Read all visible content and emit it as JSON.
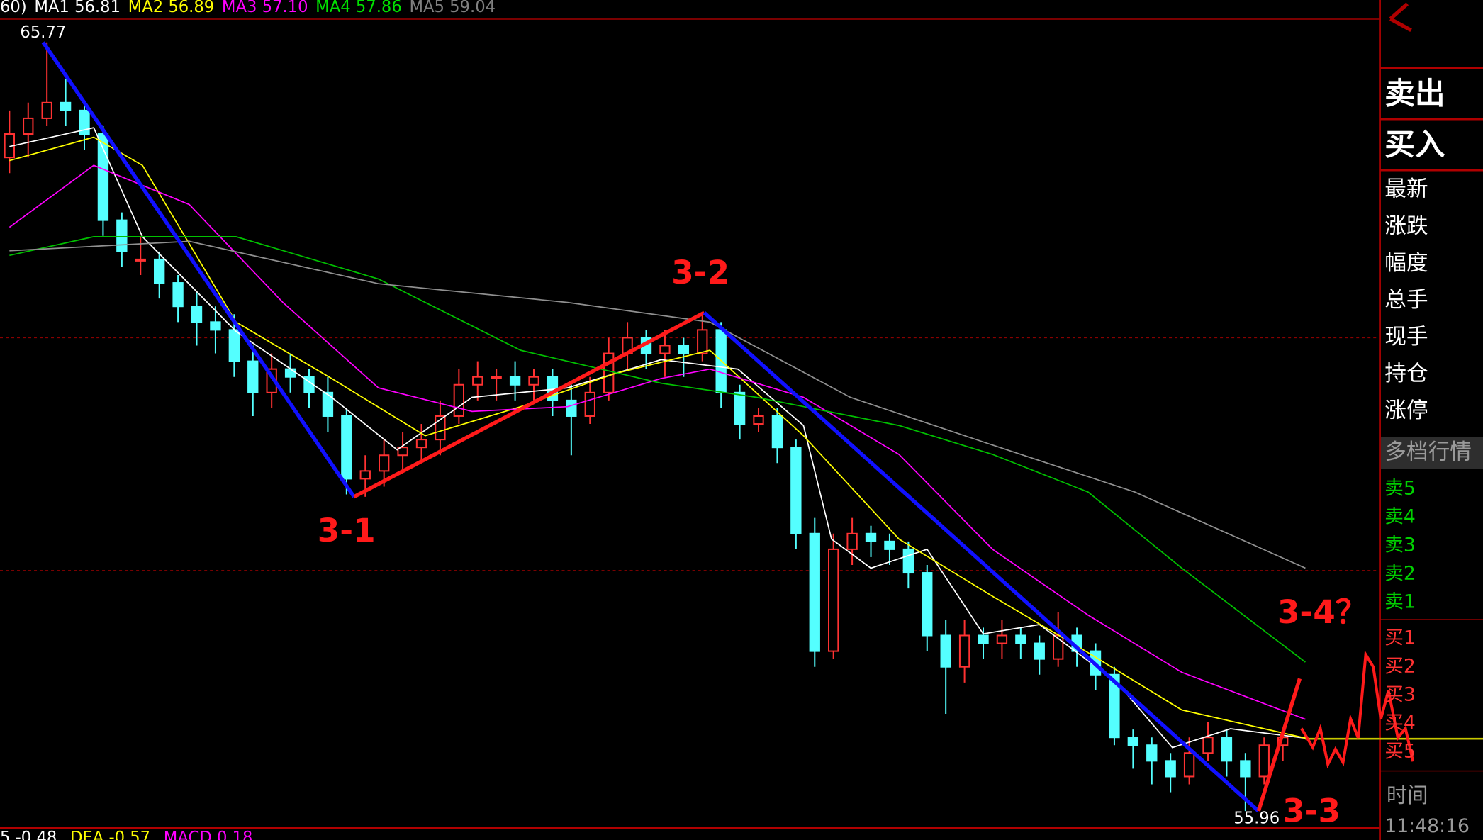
{
  "header": {
    "items": [
      {
        "text": "60)",
        "color": "#ffffff"
      },
      {
        "text": "MA1 56.81",
        "color": "#ffffff"
      },
      {
        "text": "MA2 56.89",
        "color": "#ffff00"
      },
      {
        "text": "MA3 57.10",
        "color": "#ff00ff"
      },
      {
        "text": "MA4 57.86",
        "color": "#00e000"
      },
      {
        "text": "MA5 59.04",
        "color": "#808080"
      }
    ]
  },
  "footer": {
    "items": [
      {
        "text": "5 -0.48",
        "color": "#ffffff"
      },
      {
        "text": "DEA -0.57",
        "color": "#ffff00"
      },
      {
        "text": "MACD 0.18",
        "color": "#ff00ff"
      }
    ]
  },
  "panel": {
    "sell": "卖出",
    "buy": "买入",
    "fields": [
      "最新",
      "涨跌",
      "幅度",
      "总手",
      "现手",
      "持仓",
      "涨停"
    ],
    "depth_title": "多档行情",
    "asks": [
      "卖5",
      "卖4",
      "卖3",
      "卖2",
      "卖1"
    ],
    "bids": [
      "买1",
      "买2",
      "买3",
      "买4",
      "买5"
    ],
    "time_label": "时间",
    "time": "11:48:16"
  },
  "chart_data": {
    "type": "candlestick",
    "ylim": [
      55.59,
      66.31
    ],
    "up_color": "#ff3232",
    "down_color": "#54ffff",
    "grid_levels": [
      62.0,
      59.03
    ],
    "high": 65.77,
    "low": 55.96,
    "candles": [
      [
        64.3,
        64.9,
        64.1,
        64.6
      ],
      [
        64.6,
        65.0,
        64.3,
        64.8
      ],
      [
        64.8,
        65.77,
        64.7,
        65.0
      ],
      [
        65.0,
        65.3,
        64.7,
        64.9
      ],
      [
        64.9,
        65.0,
        64.4,
        64.6
      ],
      [
        64.6,
        64.7,
        63.3,
        63.5
      ],
      [
        63.5,
        63.6,
        62.9,
        63.1
      ],
      [
        63.0,
        63.3,
        62.8,
        63.0
      ],
      [
        63.0,
        63.1,
        62.5,
        62.7
      ],
      [
        62.7,
        62.8,
        62.2,
        62.4
      ],
      [
        62.4,
        62.6,
        61.9,
        62.2
      ],
      [
        62.2,
        62.4,
        61.8,
        62.1
      ],
      [
        62.1,
        62.3,
        61.5,
        61.7
      ],
      [
        61.7,
        61.9,
        61.0,
        61.3
      ],
      [
        61.3,
        61.8,
        61.1,
        61.6
      ],
      [
        61.6,
        61.8,
        61.3,
        61.5
      ],
      [
        61.5,
        61.6,
        61.1,
        61.3
      ],
      [
        61.3,
        61.5,
        60.8,
        61.0
      ],
      [
        61.0,
        61.1,
        60.0,
        60.2
      ],
      [
        60.2,
        60.5,
        59.97,
        60.3
      ],
      [
        60.3,
        60.7,
        60.1,
        60.5
      ],
      [
        60.5,
        60.8,
        60.3,
        60.6
      ],
      [
        60.6,
        60.9,
        60.4,
        60.7
      ],
      [
        60.7,
        61.2,
        60.5,
        61.0
      ],
      [
        61.0,
        61.6,
        60.9,
        61.4
      ],
      [
        61.4,
        61.7,
        61.2,
        61.5
      ],
      [
        61.5,
        61.6,
        61.2,
        61.5
      ],
      [
        61.5,
        61.7,
        61.2,
        61.4
      ],
      [
        61.4,
        61.6,
        61.2,
        61.5
      ],
      [
        61.5,
        61.6,
        61.0,
        61.2
      ],
      [
        61.2,
        61.4,
        60.5,
        61.0
      ],
      [
        61.0,
        61.5,
        60.9,
        61.3
      ],
      [
        61.3,
        62.0,
        61.2,
        61.8
      ],
      [
        61.8,
        62.2,
        61.6,
        62.0
      ],
      [
        62.0,
        62.1,
        61.6,
        61.8
      ],
      [
        61.8,
        62.1,
        61.5,
        61.9
      ],
      [
        61.9,
        62.0,
        61.5,
        61.8
      ],
      [
        61.8,
        62.32,
        61.7,
        62.1
      ],
      [
        62.1,
        62.2,
        61.1,
        61.3
      ],
      [
        61.3,
        61.4,
        60.7,
        60.9
      ],
      [
        60.9,
        61.1,
        60.8,
        61.0
      ],
      [
        61.0,
        61.1,
        60.4,
        60.6
      ],
      [
        60.6,
        60.7,
        59.3,
        59.5
      ],
      [
        59.5,
        59.7,
        57.8,
        58.0
      ],
      [
        58.0,
        59.5,
        57.9,
        59.3
      ],
      [
        59.3,
        59.7,
        59.1,
        59.5
      ],
      [
        59.5,
        59.6,
        59.2,
        59.4
      ],
      [
        59.4,
        59.5,
        59.1,
        59.3
      ],
      [
        59.3,
        59.4,
        58.8,
        59.0
      ],
      [
        59.0,
        59.1,
        58.0,
        58.2
      ],
      [
        58.2,
        58.4,
        57.2,
        57.8
      ],
      [
        57.8,
        58.4,
        57.6,
        58.2
      ],
      [
        58.2,
        58.3,
        57.9,
        58.1
      ],
      [
        58.1,
        58.4,
        57.9,
        58.2
      ],
      [
        58.2,
        58.3,
        57.9,
        58.1
      ],
      [
        58.1,
        58.2,
        57.7,
        57.9
      ],
      [
        57.9,
        58.5,
        57.8,
        58.2
      ],
      [
        58.2,
        58.3,
        57.8,
        58.0
      ],
      [
        58.0,
        58.1,
        57.5,
        57.7
      ],
      [
        57.7,
        57.8,
        56.8,
        56.9
      ],
      [
        56.9,
        57.0,
        56.5,
        56.8
      ],
      [
        56.8,
        56.9,
        56.3,
        56.6
      ],
      [
        56.6,
        56.7,
        56.2,
        56.4
      ],
      [
        56.4,
        56.9,
        56.3,
        56.7
      ],
      [
        56.7,
        57.1,
        56.6,
        56.9
      ],
      [
        56.9,
        57.0,
        56.4,
        56.6
      ],
      [
        56.6,
        56.7,
        55.96,
        56.4
      ],
      [
        56.4,
        56.9,
        56.3,
        56.8
      ],
      [
        56.8,
        57.0,
        56.6,
        56.9
      ]
    ],
    "series": [
      {
        "color": "#ffffff",
        "x": [
          0,
          4.5,
          7.1,
          12.1,
          17.2,
          20.7,
          24.7,
          29.8,
          34.8,
          38.9,
          42.4,
          43.9,
          46,
          49,
          52,
          55,
          59.1,
          62.1,
          65.2,
          69.2
        ],
        "values": [
          64.44,
          64.68,
          63.29,
          62.08,
          61.24,
          60.57,
          61.24,
          61.36,
          61.72,
          61.6,
          60.88,
          59.43,
          59.06,
          59.3,
          58.22,
          58.34,
          57.61,
          56.77,
          57.01,
          56.89
        ]
      },
      {
        "color": "#ffff00",
        "x": [
          0,
          4.5,
          7.1,
          12.1,
          17.2,
          22.2,
          27.3,
          32.3,
          37.4,
          42.4,
          47.5,
          52.5,
          57.6,
          62.6,
          69.2
        ],
        "values": [
          64.26,
          64.56,
          64.2,
          62.2,
          61.48,
          60.75,
          61.12,
          61.54,
          61.84,
          60.75,
          59.43,
          58.7,
          57.98,
          57.25,
          56.89
        ]
      },
      {
        "color": "#ff00ff",
        "x": [
          0,
          4.5,
          9.6,
          14.6,
          19.7,
          24.7,
          29.8,
          34.8,
          37.4,
          42.4,
          47.5,
          52.5,
          57.6,
          62.6,
          69.2
        ],
        "values": [
          63.41,
          64.2,
          63.7,
          62.45,
          61.36,
          61.06,
          61.12,
          61.48,
          61.6,
          61.24,
          60.51,
          59.3,
          58.46,
          57.73,
          57.13
        ]
      },
      {
        "color": "#00c000",
        "x": [
          0,
          4.5,
          12.1,
          19.7,
          27.3,
          34.8,
          39.9,
          47.5,
          52.5,
          57.6,
          62.6,
          69.2
        ],
        "values": [
          63.05,
          63.29,
          63.29,
          62.75,
          61.84,
          61.42,
          61.24,
          60.88,
          60.51,
          60.03,
          59.06,
          57.86
        ]
      },
      {
        "color": "#909090",
        "x": [
          0,
          9.6,
          19.7,
          29.8,
          37.4,
          44.9,
          52.5,
          60.1,
          69.2
        ],
        "values": [
          63.11,
          63.23,
          62.69,
          62.45,
          62.2,
          61.24,
          60.63,
          60.03,
          59.06
        ]
      }
    ],
    "pivots": [
      {
        "x": 1.8,
        "y": 65.77
      },
      {
        "x": 18.4,
        "y": 59.97,
        "label": "3-1"
      },
      {
        "x": 37.1,
        "y": 62.32,
        "label": "3-2"
      },
      {
        "x": 66.7,
        "y": 55.96,
        "label": "3-3"
      },
      {
        "x": 68.9,
        "y": 57.65,
        "label": "3-4？"
      }
    ],
    "segment_colors": [
      "#1010ff",
      "#ff1a1a",
      "#1010ff",
      "#ff1a1a"
    ]
  }
}
